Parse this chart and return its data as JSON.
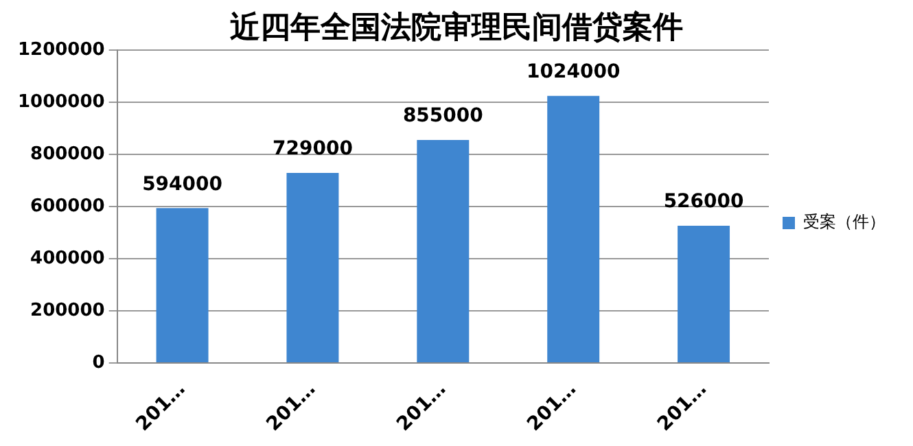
{
  "chart_data": {
    "type": "bar",
    "title": "近四年全国法院审理民间借贷案件",
    "categories": [
      "201…",
      "201…",
      "201…",
      "201…",
      "201…"
    ],
    "series": [
      {
        "name": "受案（件）",
        "color": "#3f86d0",
        "values": [
          594000,
          729000,
          855000,
          1024000,
          526000
        ]
      }
    ],
    "ylim": [
      0,
      1200000
    ],
    "yticks": [
      0,
      200000,
      400000,
      600000,
      800000,
      1000000,
      1200000
    ],
    "grid": "y",
    "legend": "right",
    "data_labels": true
  }
}
